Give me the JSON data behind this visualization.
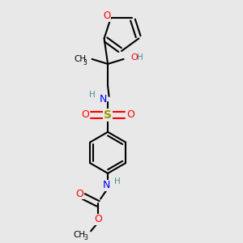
{
  "bg_color": "#e8e8e8",
  "atom_colors": {
    "C": "#000000",
    "H": "#4a9090",
    "N": "#0000ff",
    "O": "#ff0000",
    "S": "#999900"
  },
  "figsize": [
    3.0,
    3.0
  ],
  "dpi": 100
}
